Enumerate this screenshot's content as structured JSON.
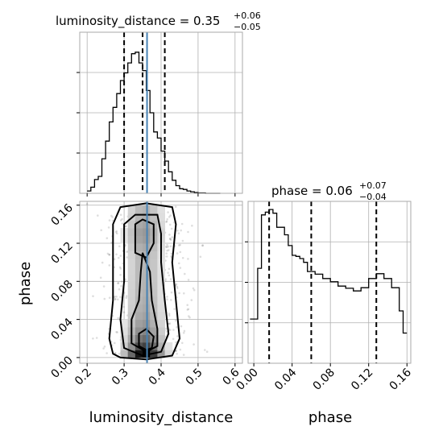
{
  "chart_data": {
    "type": "corner",
    "parameters": [
      "luminosity_distance",
      "phase"
    ],
    "truth": {
      "luminosity_distance": 0.362,
      "phase": null
    },
    "panels": [
      {
        "id": "lum-hist",
        "type": "histogram",
        "parameter": "luminosity_distance",
        "title": {
          "main": "luminosity_distance = 0.35",
          "sup": "+0.06",
          "sub": "−0.05"
        },
        "xlim": [
          0.18,
          0.62
        ],
        "ylim": [
          0,
          21
        ],
        "bin_edges": [
          0.2,
          0.21,
          0.22,
          0.23,
          0.24,
          0.25,
          0.26,
          0.27,
          0.28,
          0.29,
          0.3,
          0.31,
          0.32,
          0.33,
          0.34,
          0.35,
          0.36,
          0.37,
          0.38,
          0.39,
          0.4,
          0.41,
          0.42,
          0.43,
          0.44,
          0.45,
          0.46,
          0.47,
          0.48,
          0.49,
          0.5,
          0.51,
          0.52,
          0.53,
          0.54,
          0.55,
          0.56
        ],
        "counts": [
          0.3,
          0.8,
          1.8,
          2.2,
          4.5,
          6.8,
          9.3,
          11.2,
          13.0,
          14.7,
          15.7,
          17.0,
          18.2,
          18.4,
          17.0,
          16.0,
          13.4,
          10.5,
          8.0,
          7.2,
          5.5,
          4.2,
          2.8,
          1.7,
          1.0,
          0.6,
          0.5,
          0.3,
          0.2,
          0.1,
          0.05,
          0.05,
          0,
          0,
          0,
          0
        ],
        "quantiles": [
          0.3,
          0.35,
          0.41
        ],
        "show_truth": true
      },
      {
        "id": "phase-hist",
        "type": "histogram",
        "parameter": "phase",
        "title": {
          "main": "phase = 0.06",
          "sup": "+0.07",
          "sub": "−0.04"
        },
        "xlim": [
          -0.006,
          0.164
        ],
        "ylim": [
          0,
          30
        ],
        "bin_edges": [
          -0.004,
          0.0,
          0.004,
          0.008,
          0.012,
          0.016,
          0.02,
          0.024,
          0.028,
          0.032,
          0.036,
          0.04,
          0.044,
          0.048,
          0.052,
          0.056,
          0.06,
          0.064,
          0.068,
          0.072,
          0.076,
          0.08,
          0.084,
          0.088,
          0.092,
          0.096,
          0.1,
          0.104,
          0.108,
          0.112,
          0.116,
          0.12,
          0.124,
          0.128,
          0.132,
          0.136,
          0.14,
          0.144,
          0.148,
          0.152,
          0.156,
          0.16
        ],
        "counts": [
          8.2,
          8.2,
          17.6,
          27.5,
          28.0,
          28.5,
          27.8,
          25.2,
          25.2,
          23.8,
          21.8,
          20.0,
          19.8,
          19.4,
          18.7,
          17.0,
          17.0,
          16.5,
          16.5,
          15.7,
          15.7,
          15.1,
          15.1,
          14.3,
          14.3,
          13.9,
          13.9,
          13.4,
          13.4,
          14.0,
          14.0,
          15.7,
          15.7,
          16.6,
          16.6,
          15.7,
          15.7,
          14.0,
          14.0,
          9.7,
          5.6
        ],
        "quantiles": [
          0.016,
          0.06,
          0.128
        ],
        "show_truth": false
      },
      {
        "id": "joint",
        "type": "2d-density",
        "xparameter": "luminosity_distance",
        "yparameter": "phase",
        "xlim": [
          0.18,
          0.62
        ],
        "ylim": [
          -0.006,
          0.164
        ],
        "x_ticks": [
          0.2,
          0.3,
          0.4,
          0.5,
          0.6
        ],
        "y_ticks": [
          0.0,
          0.04,
          0.08,
          0.12,
          0.16
        ],
        "truth_x": 0.362
      }
    ],
    "axis_labels": {
      "x_left": "luminosity_distance",
      "x_right": "phase",
      "y_left": "phase"
    },
    "tick_labels": {
      "lum": [
        "0.2",
        "0.3",
        "0.4",
        "0.5",
        "0.6"
      ],
      "phase": [
        "0.00",
        "0.04",
        "0.08",
        "0.12",
        "0.16"
      ]
    },
    "grid": true
  }
}
